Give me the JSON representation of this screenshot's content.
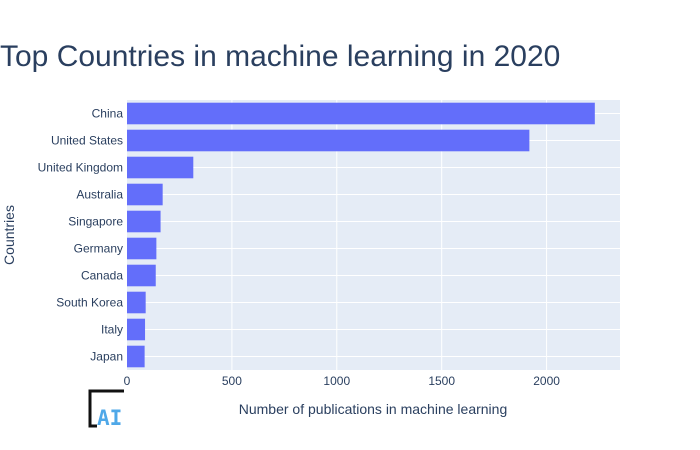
{
  "chart_data": {
    "type": "bar",
    "orientation": "horizontal",
    "title": "Top Countries in machine learning in 2020",
    "xlabel": "Number of publications in machine learning",
    "ylabel": "Countries",
    "categories": [
      "China",
      "United States",
      "United Kingdom",
      "Australia",
      "Singapore",
      "Germany",
      "Canada",
      "South Korea",
      "Italy",
      "Japan"
    ],
    "values": [
      2230,
      1918,
      316,
      170,
      160,
      140,
      137,
      89,
      86,
      84
    ],
    "xlim": [
      0,
      2350
    ],
    "xticks": [
      0,
      500,
      1000,
      1500,
      2000
    ],
    "grid": true,
    "bar_color": "#636efa",
    "plot_bgcolor": "#e5ecf6",
    "text_color": "#2a3f5f"
  },
  "logo": {
    "text": "AI",
    "icon": "ai-logo-icon",
    "color": "#4fa8e8"
  }
}
